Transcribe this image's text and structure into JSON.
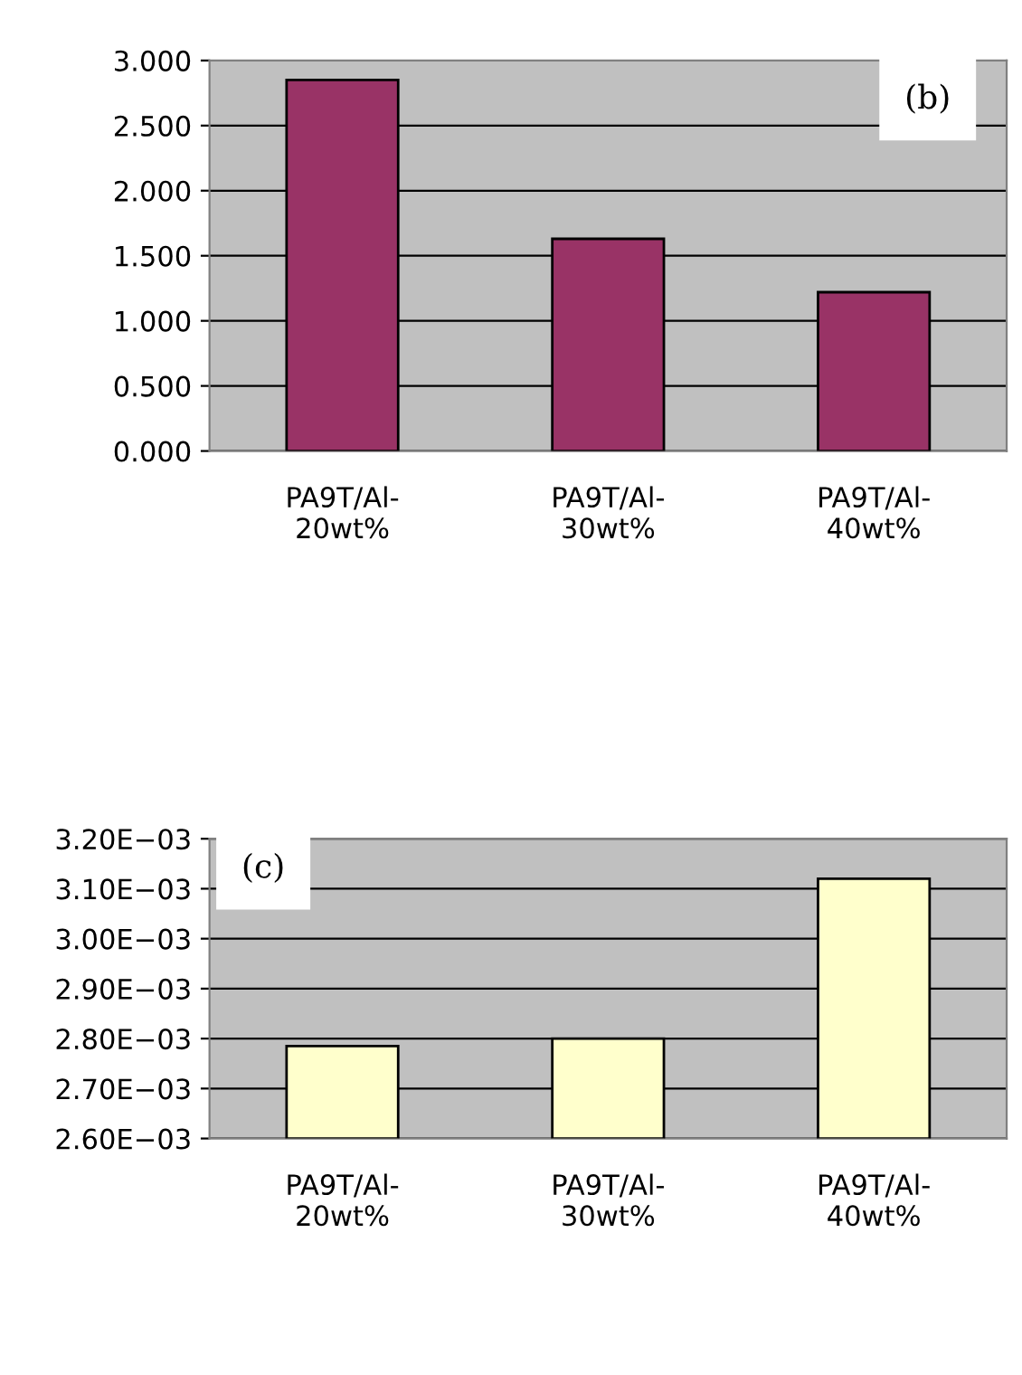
{
  "chart_data": [
    {
      "type": "bar",
      "categories": [
        "PA9T/Al-20wt%",
        "PA9T/Al-30wt%",
        "PA9T/Al-40wt%"
      ],
      "values": [
        2.85,
        1.63,
        1.22
      ],
      "color": "#993366",
      "ylim": [
        0,
        3
      ],
      "yticks": [
        {
          "value": 0,
          "label": "0.000"
        },
        {
          "value": 0.5,
          "label": "0.500"
        },
        {
          "value": 1,
          "label": "1.000"
        },
        {
          "value": 1.5,
          "label": "1.500"
        },
        {
          "value": 2,
          "label": "2.000"
        },
        {
          "value": 2.5,
          "label": "2.500"
        },
        {
          "value": 3,
          "label": "3.000"
        }
      ],
      "grid": "y",
      "annotations": [
        "(b)"
      ]
    },
    {
      "type": "bar",
      "categories": [
        "PA9T/Al-20wt%",
        "PA9T/Al-30wt%",
        "PA9T/Al-40wt%"
      ],
      "values": [
        0.002785,
        0.0028,
        0.00312
      ],
      "color": "#ffffcc",
      "ylim": [
        0.0026,
        0.0032
      ],
      "yticks": [
        {
          "value": 0.0026,
          "label": "2.60E−03"
        },
        {
          "value": 0.0027,
          "label": "2.70E−03"
        },
        {
          "value": 0.0028,
          "label": "2.80E−03"
        },
        {
          "value": 0.0029,
          "label": "2.90E−03"
        },
        {
          "value": 0.003,
          "label": "3.00E−03"
        },
        {
          "value": 0.0031,
          "label": "3.10E−03"
        },
        {
          "value": 0.0032,
          "label": "3.20E−03"
        }
      ],
      "grid": "y",
      "annotations": [
        "(c)"
      ]
    }
  ]
}
